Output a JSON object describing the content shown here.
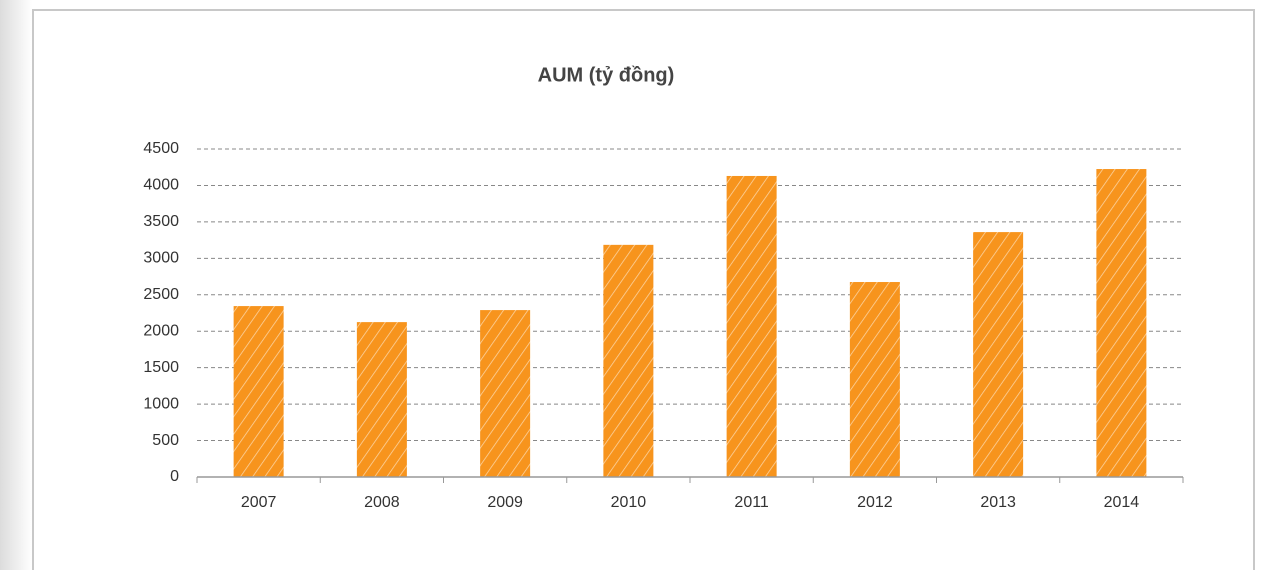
{
  "chart_data": {
    "type": "bar",
    "title": "AUM (tỷ đồng)",
    "categories": [
      "2007",
      "2008",
      "2009",
      "2010",
      "2011",
      "2012",
      "2013",
      "2014"
    ],
    "values": [
      2345,
      2125,
      2290,
      3185,
      4130,
      2675,
      3360,
      4225
    ],
    "color": "#f7941d",
    "ylim": [
      0,
      4500
    ],
    "yticks": [
      0,
      500,
      1000,
      1500,
      2000,
      2500,
      3000,
      3500,
      4000,
      4500
    ],
    "grid": true
  }
}
